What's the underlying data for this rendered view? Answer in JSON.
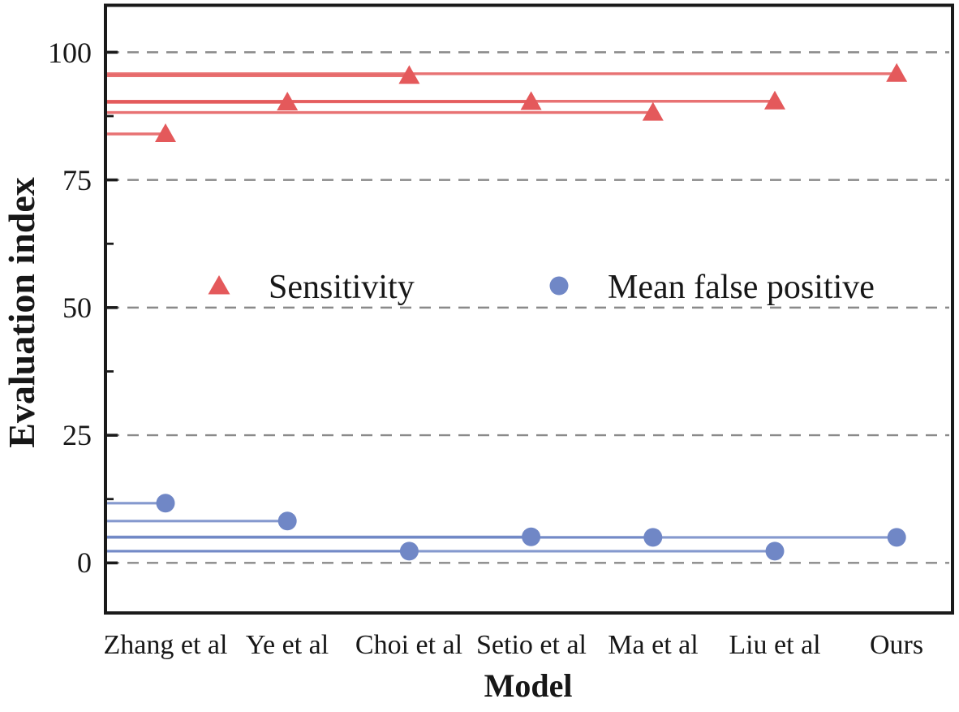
{
  "chart_data": {
    "type": "scatter",
    "subtype": "horizontal-stem-lollipop",
    "title": "",
    "xlabel": "Model",
    "ylabel": "Evaluation index",
    "categories": [
      "Zhang et al",
      "Ye et al",
      "Choi et al",
      "Setio et al",
      "Ma et al",
      "Liu et al",
      "Ours"
    ],
    "series": [
      {
        "name": "Sensitivity",
        "marker": "triangle-up",
        "color": "#e4595b",
        "values": [
          84.0,
          90.2,
          95.4,
          90.3,
          88.2,
          90.4,
          95.8
        ]
      },
      {
        "name": "Mean false positive",
        "marker": "circle",
        "color": "#7087c6",
        "values": [
          11.7,
          8.2,
          2.3,
          5.1,
          5.0,
          2.3,
          5.0
        ]
      }
    ],
    "yticks": [
      0,
      25,
      50,
      75,
      100
    ],
    "minor_yticks": [
      12.5,
      37.5,
      62.5,
      87.5
    ],
    "ylim": [
      -9.8,
      109.2
    ],
    "grid": "horizontal dashed lines at major y ticks",
    "grid_color": "#8a8a8a",
    "axis_color": "#1a1a1a",
    "legend_position": "inside center, horizontal row",
    "stems": "each point connected to left axis by a horizontal line of its series color"
  }
}
